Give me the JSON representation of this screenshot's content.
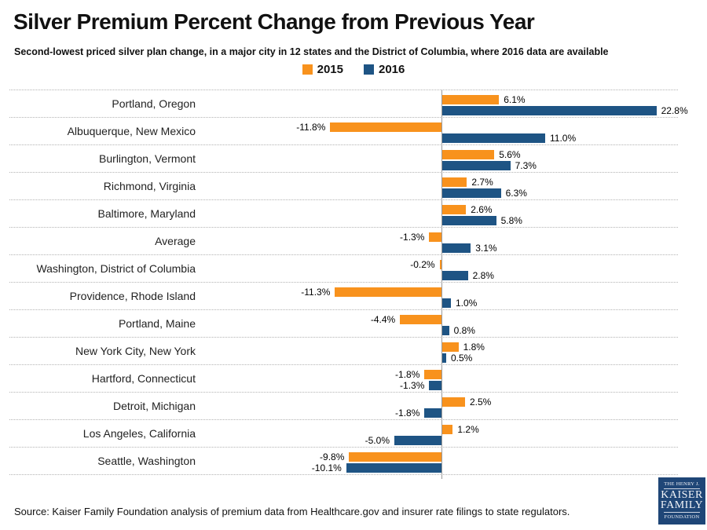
{
  "page": {
    "title": "Silver Premium Percent Change from Previous Year",
    "subtitle": "Second-lowest priced silver plan change, in a major city in 12 states and the District of Columbia, where 2016 data are available",
    "source": "Source: Kaiser Family Foundation analysis of premium data from Healthcare.gov and insurer rate filings to state regulators.",
    "logo": {
      "line1": "THE HENRY J.",
      "line2": "KAISER",
      "line3": "FAMILY",
      "line4": "FOUNDATION",
      "background_color": "#1f4677"
    }
  },
  "chart_data": {
    "type": "bar",
    "orientation": "horizontal",
    "title": "Silver Premium Percent Change from Previous Year",
    "subtitle": "Second-lowest priced silver plan change, in a major city in 12 states and the District of Columbia, where 2016 data are available",
    "legend_position": "top-center",
    "grid": "row-separators-dotted",
    "xlim": [
      -25,
      25
    ],
    "zero_axis_line": true,
    "categories": [
      "Portland, Oregon",
      "Albuquerque, New Mexico",
      "Burlington, Vermont",
      "Richmond, Virginia",
      "Baltimore, Maryland",
      "Average",
      "Washington, District of Columbia",
      "Providence, Rhode Island",
      "Portland, Maine",
      "New York City, New York",
      "Hartford, Connecticut",
      "Detroit, Michigan",
      "Los Angeles, California",
      "Seattle, Washington"
    ],
    "series": [
      {
        "name": "2015",
        "color": "#f8921d",
        "values": [
          6.1,
          -11.8,
          5.6,
          2.7,
          2.6,
          -1.3,
          -0.2,
          -11.3,
          -4.4,
          1.8,
          -1.8,
          2.5,
          1.2,
          -9.8
        ],
        "labels": [
          "6.1%",
          "-11.8%",
          "5.6%",
          "2.7%",
          "2.6%",
          "-1.3%",
          "-0.2%",
          "-11.3%",
          "-4.4%",
          "1.8%",
          "-1.8%",
          "2.5%",
          "1.2%",
          "-9.8%"
        ]
      },
      {
        "name": "2016",
        "color": "#1e5484",
        "values": [
          22.8,
          11.0,
          7.3,
          6.3,
          5.8,
          3.1,
          2.8,
          1.0,
          0.8,
          0.5,
          -1.3,
          -1.8,
          -5.0,
          -10.1
        ],
        "labels": [
          "22.8%",
          "11.0%",
          "7.3%",
          "6.3%",
          "5.8%",
          "3.1%",
          "2.8%",
          "1.0%",
          "0.8%",
          "0.5%",
          "-1.3%",
          "-1.8%",
          "-5.0%",
          "-10.1%"
        ]
      }
    ]
  }
}
